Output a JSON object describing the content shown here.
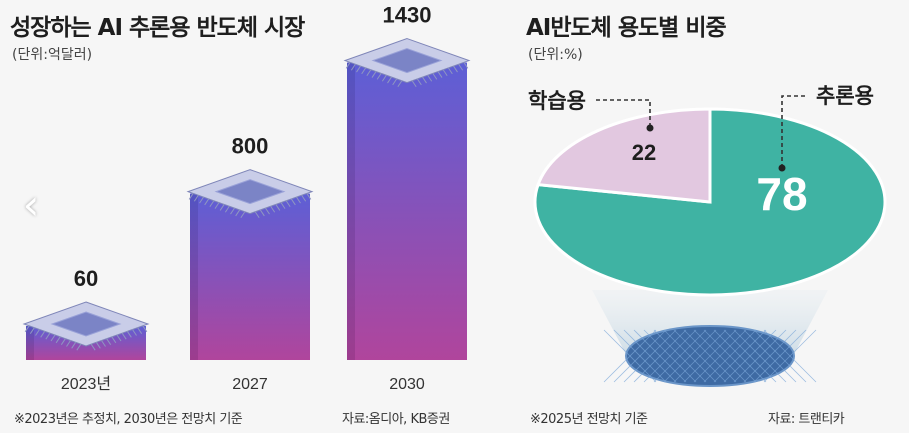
{
  "left": {
    "title": "성장하는 AI 추론용 반도체 시장",
    "unit": "(단위:억달러)",
    "note_left": "※2023년은 추정치, 2030년은 전망치 기준",
    "note_right": "자료:옴디아, KB증권",
    "nav_icon": "chevron-left-icon"
  },
  "right": {
    "title": "AI반도체 용도별 비중",
    "unit": "(단위:%)",
    "note_left": "※2025년 전망치 기준",
    "note_right": "자료: 트랜티카"
  },
  "colors": {
    "bar_top": "#5d5fd6",
    "bar_bottom": "#b0459c",
    "pie_inference": "#3fb3a3",
    "pie_training": "#e2c8e0"
  },
  "chart_data": [
    {
      "type": "bar",
      "title": "성장하는 AI 추론용 반도체 시장",
      "unit": "(단위:억달러)",
      "categories": [
        "2023년",
        "2027",
        "2030"
      ],
      "values": [
        60,
        800,
        1430
      ],
      "data_labels": [
        "60",
        "800",
        "1430"
      ]
    },
    {
      "type": "pie",
      "title": "AI반도체 용도별 비중",
      "unit": "(단위:%)",
      "labels": [
        "추론용",
        "학습용"
      ],
      "values": [
        78,
        22
      ],
      "data_labels": [
        "78",
        "22"
      ]
    }
  ]
}
